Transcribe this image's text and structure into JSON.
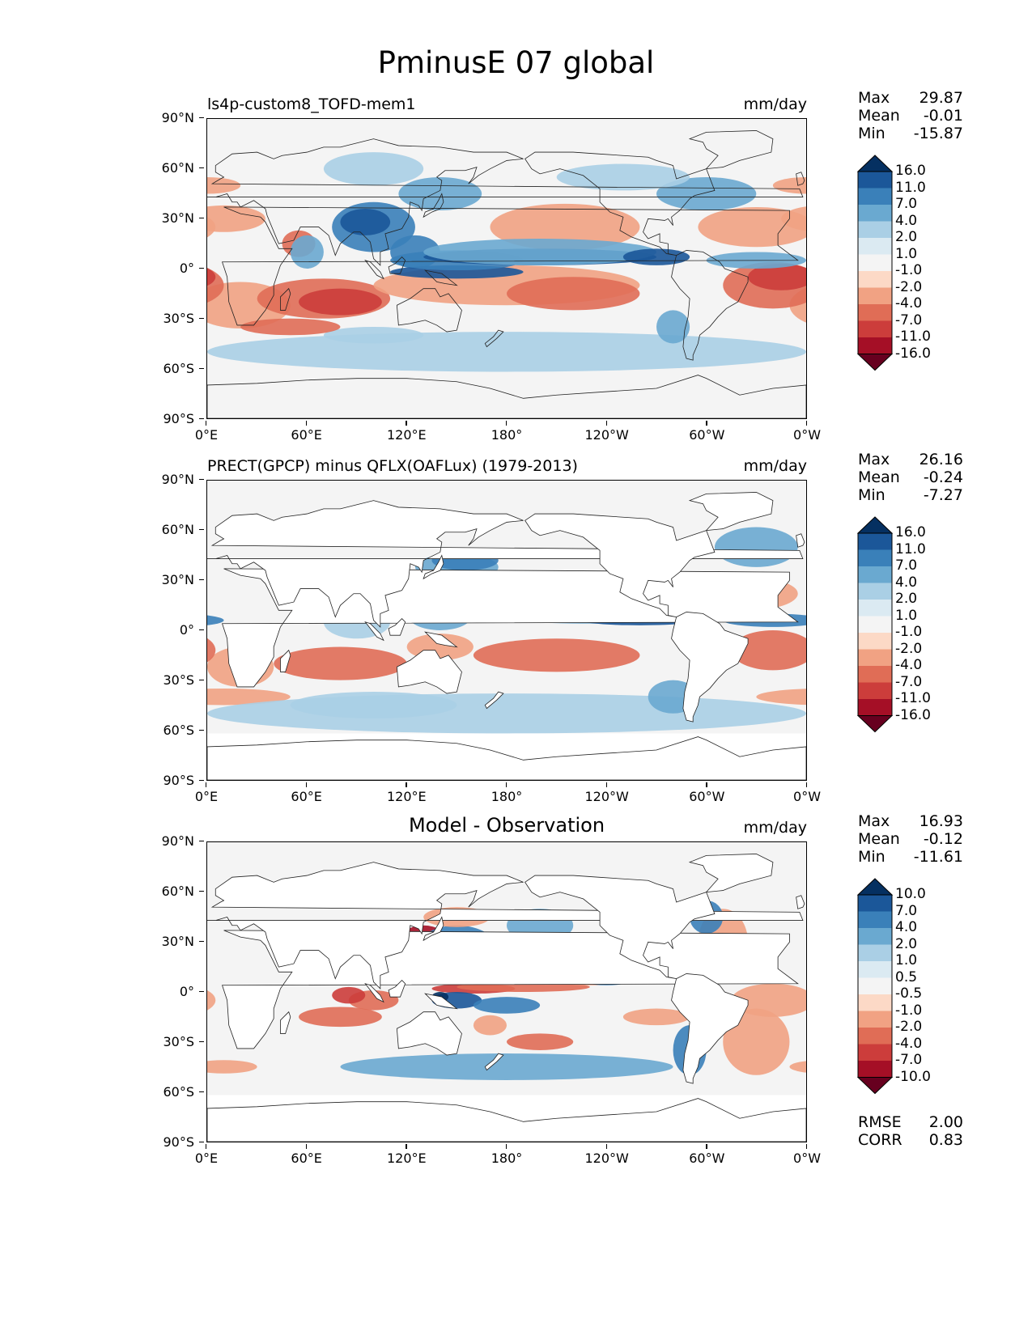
{
  "title": "PminusE 07 global",
  "lat_ticks": [
    "90°N",
    "60°N",
    "30°N",
    "0°",
    "30°S",
    "60°S",
    "90°S"
  ],
  "lon_ticks": [
    "0°E",
    "60°E",
    "120°E",
    "180°",
    "120°W",
    "60°W",
    "0°W"
  ],
  "panels": [
    {
      "title": "ls4p-custom8_TOFD-mem1",
      "title_style": "left",
      "units": "mm/day",
      "stats": {
        "max_label": "Max",
        "max": "29.87",
        "mean_label": "Mean",
        "mean": "-0.01",
        "min_label": "Min",
        "min": "-15.87"
      },
      "colorbar_labels": [
        "16.0",
        "11.0",
        "7.0",
        "4.0",
        "2.0",
        "1.0",
        "-1.0",
        "-2.0",
        "-4.0",
        "-7.0",
        "-11.0",
        "-16.0"
      ],
      "ocean_mask": false
    },
    {
      "title": "PRECT(GPCP) minus QFLX(OAFLux) (1979-2013)",
      "title_style": "left",
      "units": "mm/day",
      "stats": {
        "max_label": "Max",
        "max": "26.16",
        "mean_label": "Mean",
        "mean": "-0.24",
        "min_label": "Min",
        "min": "-7.27"
      },
      "colorbar_labels": [
        "16.0",
        "11.0",
        "7.0",
        "4.0",
        "2.0",
        "1.0",
        "-1.0",
        "-2.0",
        "-4.0",
        "-7.0",
        "-11.0",
        "-16.0"
      ],
      "ocean_mask": true
    },
    {
      "title": "Model - Observation",
      "title_style": "center",
      "units": "mm/day",
      "stats": {
        "max_label": "Max",
        "max": "16.93",
        "mean_label": "Mean",
        "mean": "-0.12",
        "min_label": "Min",
        "min": "-11.61"
      },
      "colorbar_labels": [
        "10.0",
        "7.0",
        "4.0",
        "2.0",
        "1.0",
        "0.5",
        "-0.5",
        "-1.0",
        "-2.0",
        "-4.0",
        "-7.0",
        "-10.0"
      ],
      "ocean_mask": true,
      "footer": {
        "rmse_label": "RMSE",
        "rmse": "2.00",
        "corr_label": "CORR",
        "corr": "0.83"
      }
    }
  ],
  "colors": {
    "colorbar": [
      "#67001f",
      "#a50f26",
      "#cc3d3b",
      "#e06d56",
      "#f1a283",
      "#fcd9c6",
      "#f4f4f4",
      "#dbeaf2",
      "#aacfe5",
      "#6aa9d0",
      "#3a80b9",
      "#1b5799",
      "#053061"
    ]
  }
}
